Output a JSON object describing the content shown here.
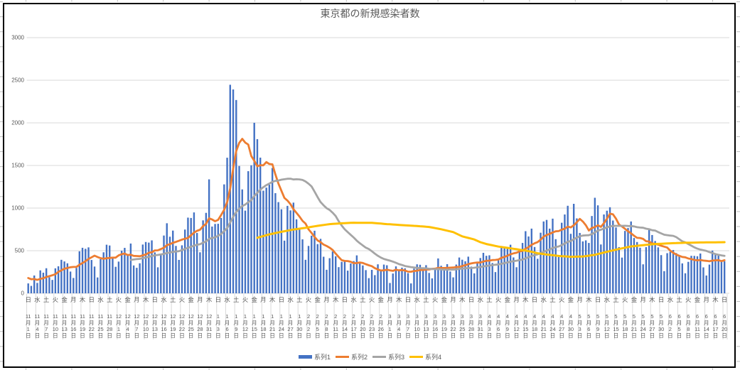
{
  "chart_data": {
    "type": "combo",
    "title": "東京都の新規感染者数",
    "ylim": [
      0,
      3000
    ],
    "y_ticks": [
      "0",
      "500",
      "1000",
      "1500",
      "2000",
      "2500",
      "3000"
    ],
    "x_tick_interval_days": 3,
    "x_ticks": [
      [
        "日",
        11,
        1
      ],
      [
        "水",
        11,
        4
      ],
      [
        "土",
        11,
        7
      ],
      [
        "火",
        11,
        10
      ],
      [
        "金",
        11,
        13
      ],
      [
        "月",
        11,
        16
      ],
      [
        "木",
        11,
        19
      ],
      [
        "日",
        11,
        22
      ],
      [
        "水",
        11,
        25
      ],
      [
        "土",
        11,
        28
      ],
      [
        "火",
        12,
        1
      ],
      [
        "金",
        12,
        4
      ],
      [
        "月",
        12,
        7
      ],
      [
        "木",
        12,
        10
      ],
      [
        "日",
        12,
        13
      ],
      [
        "水",
        12,
        16
      ],
      [
        "土",
        12,
        19
      ],
      [
        "火",
        12,
        22
      ],
      [
        "金",
        12,
        25
      ],
      [
        "月",
        12,
        28
      ],
      [
        "木",
        12,
        31
      ],
      [
        "日",
        1,
        3
      ],
      [
        "水",
        1,
        6
      ],
      [
        "土",
        1,
        9
      ],
      [
        "火",
        1,
        12
      ],
      [
        "金",
        1,
        15
      ],
      [
        "月",
        1,
        18
      ],
      [
        "木",
        1,
        21
      ],
      [
        "日",
        1,
        24
      ],
      [
        "水",
        1,
        27
      ],
      [
        "土",
        1,
        30
      ],
      [
        "火",
        2,
        2
      ],
      [
        "金",
        2,
        5
      ],
      [
        "月",
        2,
        8
      ],
      [
        "木",
        2,
        11
      ],
      [
        "日",
        2,
        14
      ],
      [
        "水",
        2,
        17
      ],
      [
        "土",
        2,
        20
      ],
      [
        "火",
        2,
        23
      ],
      [
        "金",
        2,
        26
      ],
      [
        "月",
        3,
        1
      ],
      [
        "木",
        3,
        4
      ],
      [
        "日",
        3,
        7
      ],
      [
        "水",
        3,
        10
      ],
      [
        "土",
        3,
        13
      ],
      [
        "火",
        3,
        16
      ],
      [
        "金",
        3,
        19
      ],
      [
        "月",
        3,
        22
      ],
      [
        "木",
        3,
        25
      ],
      [
        "日",
        3,
        28
      ],
      [
        "水",
        3,
        31
      ],
      [
        "土",
        4,
        3
      ],
      [
        "火",
        4,
        6
      ],
      [
        "金",
        4,
        9
      ],
      [
        "月",
        4,
        12
      ],
      [
        "木",
        4,
        15
      ],
      [
        "日",
        4,
        18
      ],
      [
        "水",
        4,
        21
      ],
      [
        "土",
        4,
        24
      ],
      [
        "火",
        4,
        27
      ],
      [
        "金",
        4,
        30
      ],
      [
        "月",
        5,
        3
      ],
      [
        "木",
        5,
        6
      ],
      [
        "日",
        5,
        9
      ],
      [
        "水",
        5,
        12
      ],
      [
        "土",
        5,
        15
      ],
      [
        "火",
        5,
        18
      ],
      [
        "金",
        5,
        21
      ],
      [
        "月",
        5,
        24
      ],
      [
        "木",
        5,
        27
      ],
      [
        "日",
        5,
        30
      ],
      [
        "水",
        6,
        2
      ],
      [
        "土",
        6,
        5
      ],
      [
        "火",
        6,
        8
      ],
      [
        "金",
        6,
        11
      ],
      [
        "月",
        6,
        14
      ],
      [
        "木",
        6,
        17
      ],
      [
        "日",
        6,
        20
      ]
    ],
    "series": [
      {
        "name": "系列1",
        "type": "bar",
        "color": "#4472C4",
        "values": [
          116,
          87,
          209,
          122,
          269,
          242,
          294,
          189,
          157,
          293,
          317,
          393,
          374,
          352,
          255,
          180,
          298,
          493,
          534,
          522,
          539,
          391,
          314,
          186,
          401,
          481,
          570,
          561,
          418,
          311,
          372,
          500,
          533,
          449,
          584,
          327,
          299,
          352,
          572,
          602,
          595,
          621,
          480,
          305,
          460,
          678,
          822,
          664,
          736,
          556,
          392,
          563,
          748,
          888,
          884,
          949,
          708,
          481,
          856,
          944,
          1337,
          783,
          814,
          816,
          884,
          1278,
          1591,
          2447,
          2392,
          2268,
          1494,
          1219,
          970,
          1433,
          1502,
          2001,
          1809,
          1592,
          1204,
          1240,
          1274,
          1471,
          1175,
          1070,
          986,
          618,
          1026,
          973,
          1064,
          868,
          769,
          633,
          393,
          556,
          676,
          734,
          577,
          639,
          429,
          276,
          412,
          491,
          434,
          307,
          369,
          371,
          266,
          350,
          378,
          445,
          353,
          327,
          272,
          178,
          275,
          213,
          340,
          270,
          337,
          329,
          121,
          232,
          316,
          279,
          301,
          293,
          237,
          116,
          290,
          340,
          335,
          304,
          330,
          239,
          175,
          300,
          409,
          323,
          303,
          342,
          256,
          187,
          337,
          420,
          394,
          376,
          430,
          313,
          234,
          364,
          414,
          475,
          440,
          446,
          355,
          249,
          399,
          555,
          545,
          537,
          570,
          421,
          306,
          510,
          591,
          729,
          667,
          759,
          543,
          405,
          711,
          843,
          861,
          759,
          876,
          635,
          425,
          828,
          925,
          1027,
          698,
          1050,
          879,
          708,
          609,
          621,
          591,
          907,
          1121,
          1032,
          573,
          925,
          969,
          1010,
          854,
          772,
          542,
          419,
          732,
          766,
          843,
          649,
          602,
          535,
          340,
          542,
          743,
          684,
          614,
          539,
          448,
          260,
          471,
          487,
          508,
          472,
          436,
          351,
          235,
          369,
          440,
          439,
          435,
          467,
          304,
          209,
          337,
          501,
          452,
          453,
          388,
          376
        ]
      },
      {
        "name": "系列2",
        "type": "line",
        "color": "#ED7D31",
        "derivation": "7-day trailing moving average of 系列1",
        "visible_start_value": 190
      },
      {
        "name": "系列3",
        "type": "line",
        "color": "#A5A5A5",
        "derivation": "28-day trailing moving average of 系列1",
        "start_day_index": 34
      },
      {
        "name": "系列4",
        "type": "line",
        "color": "#FFC000",
        "points": [
          [
            76,
            652
          ],
          [
            80,
            692
          ],
          [
            84,
            722
          ],
          [
            88,
            748
          ],
          [
            92,
            768
          ],
          [
            96,
            792
          ],
          [
            100,
            812
          ],
          [
            104,
            822
          ],
          [
            108,
            828
          ],
          [
            114,
            827
          ],
          [
            119,
            812
          ],
          [
            124,
            800
          ],
          [
            129,
            790
          ],
          [
            133,
            778
          ],
          [
            137,
            752
          ],
          [
            141,
            718
          ],
          [
            144,
            668
          ],
          [
            148,
            632
          ],
          [
            150,
            600
          ],
          [
            152,
            578
          ],
          [
            156,
            548
          ],
          [
            160,
            528
          ],
          [
            163,
            512
          ],
          [
            166,
            495
          ],
          [
            169,
            470
          ],
          [
            172,
            455
          ],
          [
            176,
            438
          ],
          [
            180,
            428
          ],
          [
            184,
            432
          ],
          [
            188,
            452
          ],
          [
            192,
            487
          ],
          [
            196,
            520
          ],
          [
            200,
            550
          ],
          [
            204,
            565
          ],
          [
            208,
            578
          ],
          [
            213,
            587
          ],
          [
            218,
            593
          ],
          [
            224,
            597
          ],
          [
            231,
            600
          ]
        ]
      }
    ],
    "grid_color": "#D9D9D9",
    "text_color": "#595959"
  }
}
